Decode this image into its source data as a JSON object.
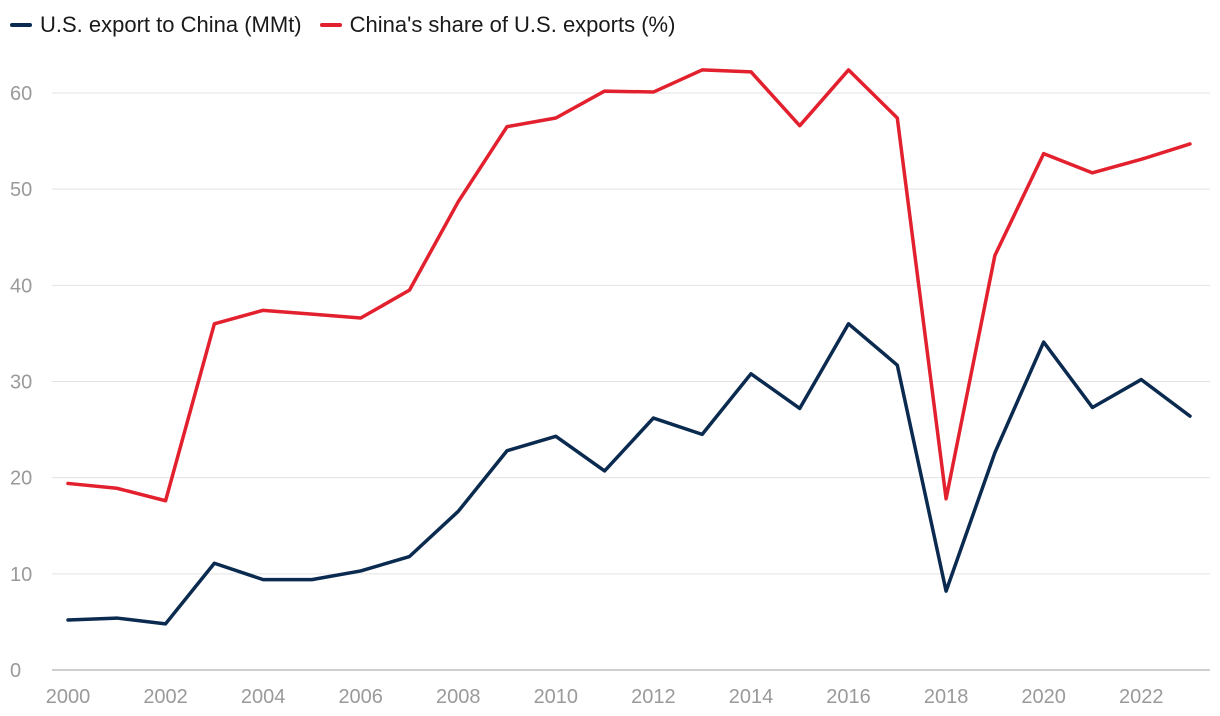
{
  "chart_data": {
    "type": "line",
    "title": "",
    "xlabel": "",
    "ylabel": "",
    "ylim": [
      0,
      65
    ],
    "xlim": [
      2000,
      2023
    ],
    "grid": true,
    "legend_position": "top-left",
    "x": [
      2000,
      2001,
      2002,
      2003,
      2004,
      2005,
      2006,
      2007,
      2008,
      2009,
      2010,
      2011,
      2012,
      2013,
      2014,
      2015,
      2016,
      2017,
      2018,
      2019,
      2020,
      2021,
      2022,
      2023
    ],
    "y_ticks": [
      0,
      10,
      20,
      30,
      40,
      50,
      60
    ],
    "x_ticks": [
      2000,
      2002,
      2004,
      2006,
      2008,
      2010,
      2012,
      2014,
      2016,
      2018,
      2020,
      2022
    ],
    "x_tick_labels": [
      "2000",
      "2002",
      "2004",
      "2006",
      "2008",
      "2010",
      "2012",
      "2014",
      "2016",
      "2018",
      "2020",
      "2022"
    ],
    "y_tick_labels": [
      "0",
      "10",
      "20",
      "30",
      "40",
      "50",
      "60"
    ],
    "series": [
      {
        "name": "U.S. export to China (MMt)",
        "color": "#0b2a4f",
        "values": [
          5.2,
          5.4,
          4.8,
          11.1,
          9.4,
          9.4,
          10.3,
          11.8,
          16.5,
          22.8,
          24.3,
          20.7,
          26.2,
          24.5,
          30.8,
          27.2,
          36.0,
          31.7,
          8.2,
          22.6,
          34.1,
          27.3,
          30.2,
          26.4
        ]
      },
      {
        "name": "China's share of U.S. exports (%)",
        "color": "#e3202e",
        "values": [
          19.4,
          18.9,
          17.6,
          36.0,
          37.4,
          37.0,
          36.6,
          39.5,
          48.7,
          56.5,
          57.4,
          60.2,
          60.1,
          62.4,
          62.2,
          56.6,
          62.4,
          57.4,
          17.8,
          43.1,
          53.7,
          51.7,
          53.1,
          54.7
        ]
      }
    ]
  }
}
